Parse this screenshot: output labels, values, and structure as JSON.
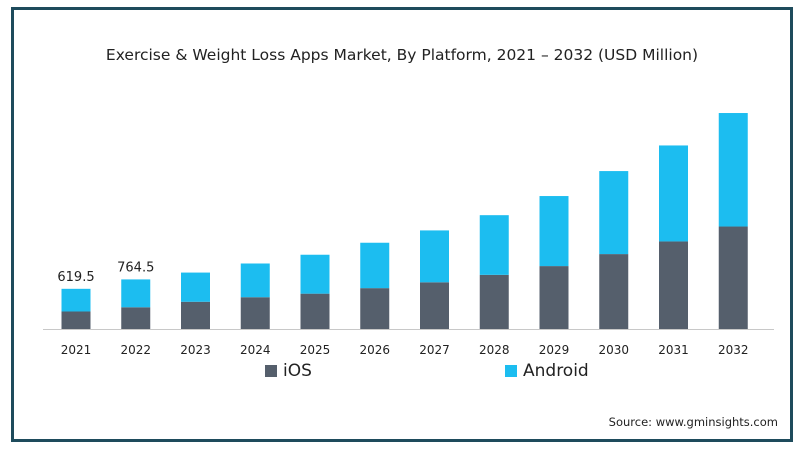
{
  "chart_data": {
    "type": "bar",
    "stacked": true,
    "title": "Exercise & Weight Loss Apps Market, By Platform, 2021 – 2032 (USD Million)",
    "xlabel": "",
    "ylabel": "",
    "categories": [
      "2021",
      "2022",
      "2023",
      "2024",
      "2025",
      "2026",
      "2027",
      "2028",
      "2029",
      "2030",
      "2031",
      "2032"
    ],
    "series": [
      {
        "name": "iOS",
        "color": "#555f6c",
        "values": [
          270,
          335,
          420,
          490,
          545,
          630,
          720,
          835,
          970,
          1155,
          1350,
          1580
        ]
      },
      {
        "name": "Android",
        "color": "#1cbdf0",
        "values": [
          349.5,
          429.5,
          450,
          520,
          600,
          700,
          800,
          920,
          1080,
          1280,
          1480,
          1750
        ]
      }
    ],
    "data_labels": [
      {
        "category": "2021",
        "text": "619.5"
      },
      {
        "category": "2022",
        "text": "764.5"
      }
    ],
    "ylim": [
      0,
      3500
    ],
    "grid": false,
    "legend_position": "bottom",
    "source": "Source: www.gminsights.com"
  }
}
